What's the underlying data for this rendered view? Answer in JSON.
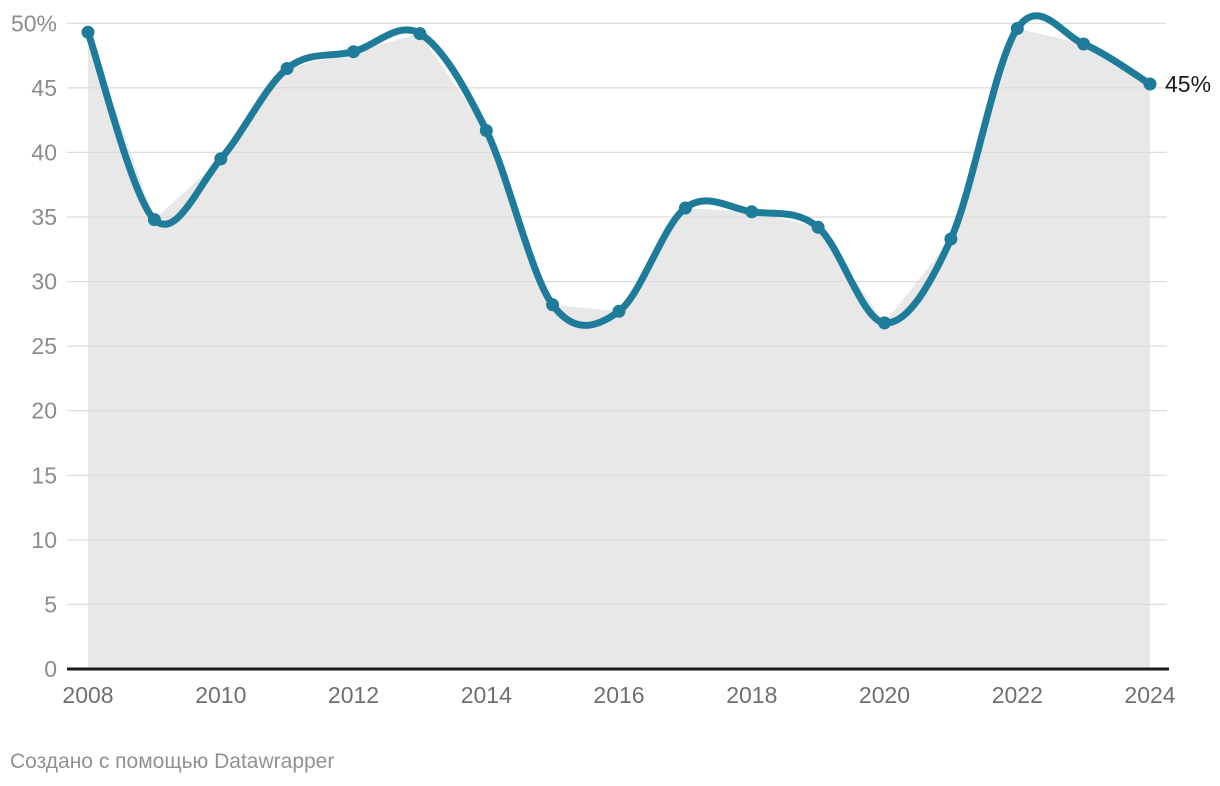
{
  "chart_data": {
    "type": "area",
    "title": "",
    "x": [
      2008,
      2009,
      2010,
      2011,
      2012,
      2013,
      2014,
      2015,
      2016,
      2017,
      2018,
      2019,
      2020,
      2021,
      2022,
      2023,
      2024
    ],
    "series": [
      {
        "name": "value",
        "values": [
          49.3,
          34.8,
          39.5,
          46.5,
          47.8,
          49.2,
          41.7,
          28.2,
          27.7,
          35.7,
          35.4,
          34.2,
          26.8,
          33.3,
          49.6,
          48.4,
          45.3
        ]
      }
    ],
    "ylim": [
      0,
      50
    ],
    "y_tick_step": 5,
    "y_tick_labels": [
      "0",
      "5",
      "10",
      "15",
      "20",
      "25",
      "30",
      "35",
      "40",
      "45",
      "50%"
    ],
    "x_tick_labels": [
      "2008",
      "2010",
      "2012",
      "2014",
      "2016",
      "2018",
      "2020",
      "2022",
      "2024"
    ],
    "x_tick_years": [
      2008,
      2010,
      2012,
      2014,
      2016,
      2018,
      2020,
      2022,
      2024
    ],
    "end_label": "45%",
    "grid": "horizontal",
    "legend": "none",
    "line_smoothing": "curved",
    "area_interpolation": "linear",
    "colors": {
      "line": "#1e7b99",
      "marker": "#1e7b99",
      "area": "#e8e8e8",
      "gridline": "#dcdcdc",
      "axis_line": "#1a1a1a",
      "y_tick_text": "#8c8c8c",
      "x_tick_text": "#6f6f6f",
      "end_label_text": "#1a1a1a"
    }
  },
  "footer": {
    "attribution": "Создано с помощью Datawrapper"
  }
}
